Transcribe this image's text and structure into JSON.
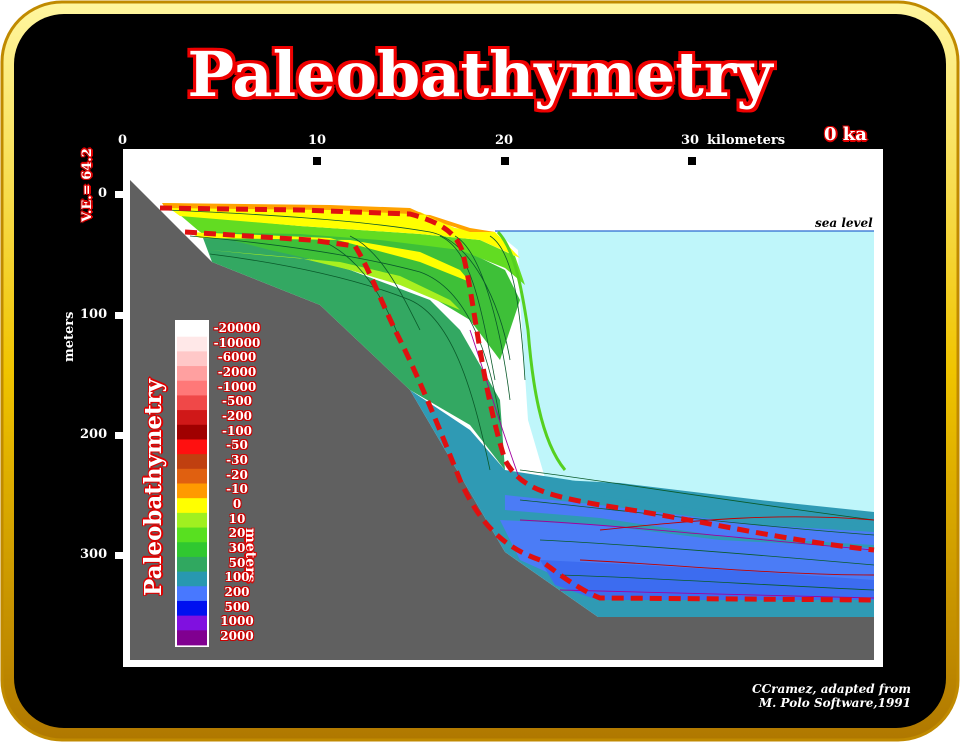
{
  "title": "Paleobathymetry",
  "time_label": "0 ka",
  "x_axis": {
    "ticks": [
      "0",
      "10",
      "20",
      "30"
    ],
    "unit": "kilometers"
  },
  "y_axis": {
    "ticks": [
      "0",
      "100",
      "200",
      "300"
    ],
    "unit": "meters"
  },
  "ve_label": "V.E.= 64.2",
  "sea_level_label": "sea level",
  "legend": {
    "title": "Paleobathymetry",
    "unit": "meters",
    "entries": [
      {
        "label": "-20000",
        "color": "#ffffff"
      },
      {
        "label": "-10000",
        "color": "#ffe8e8"
      },
      {
        "label": "-6000",
        "color": "#ffc8c8"
      },
      {
        "label": "-2000",
        "color": "#ffa0a0"
      },
      {
        "label": "-1000",
        "color": "#ff7878"
      },
      {
        "label": "-500",
        "color": "#f04848"
      },
      {
        "label": "-200",
        "color": "#d01818"
      },
      {
        "label": "-100",
        "color": "#a00000"
      },
      {
        "label": "-50",
        "color": "#ff1010"
      },
      {
        "label": "-30",
        "color": "#c04010"
      },
      {
        "label": "-20",
        "color": "#e06010"
      },
      {
        "label": "-10",
        "color": "#ff9a00"
      },
      {
        "label": "0",
        "color": "#ffff00"
      },
      {
        "label": "10",
        "color": "#a0f020"
      },
      {
        "label": "20",
        "color": "#58e020"
      },
      {
        "label": "30",
        "color": "#30c830"
      },
      {
        "label": "50",
        "color": "#30a860"
      },
      {
        "label": "100",
        "color": "#2898b0"
      },
      {
        "label": "200",
        "color": "#4878ff"
      },
      {
        "label": "500",
        "color": "#0010f0"
      },
      {
        "label": "1000",
        "color": "#8010e0"
      },
      {
        "label": "2000",
        "color": "#800090"
      }
    ]
  },
  "credit": {
    "line1": "CCramez, adapted  from",
    "line2": "M. Polo Software,1991"
  }
}
